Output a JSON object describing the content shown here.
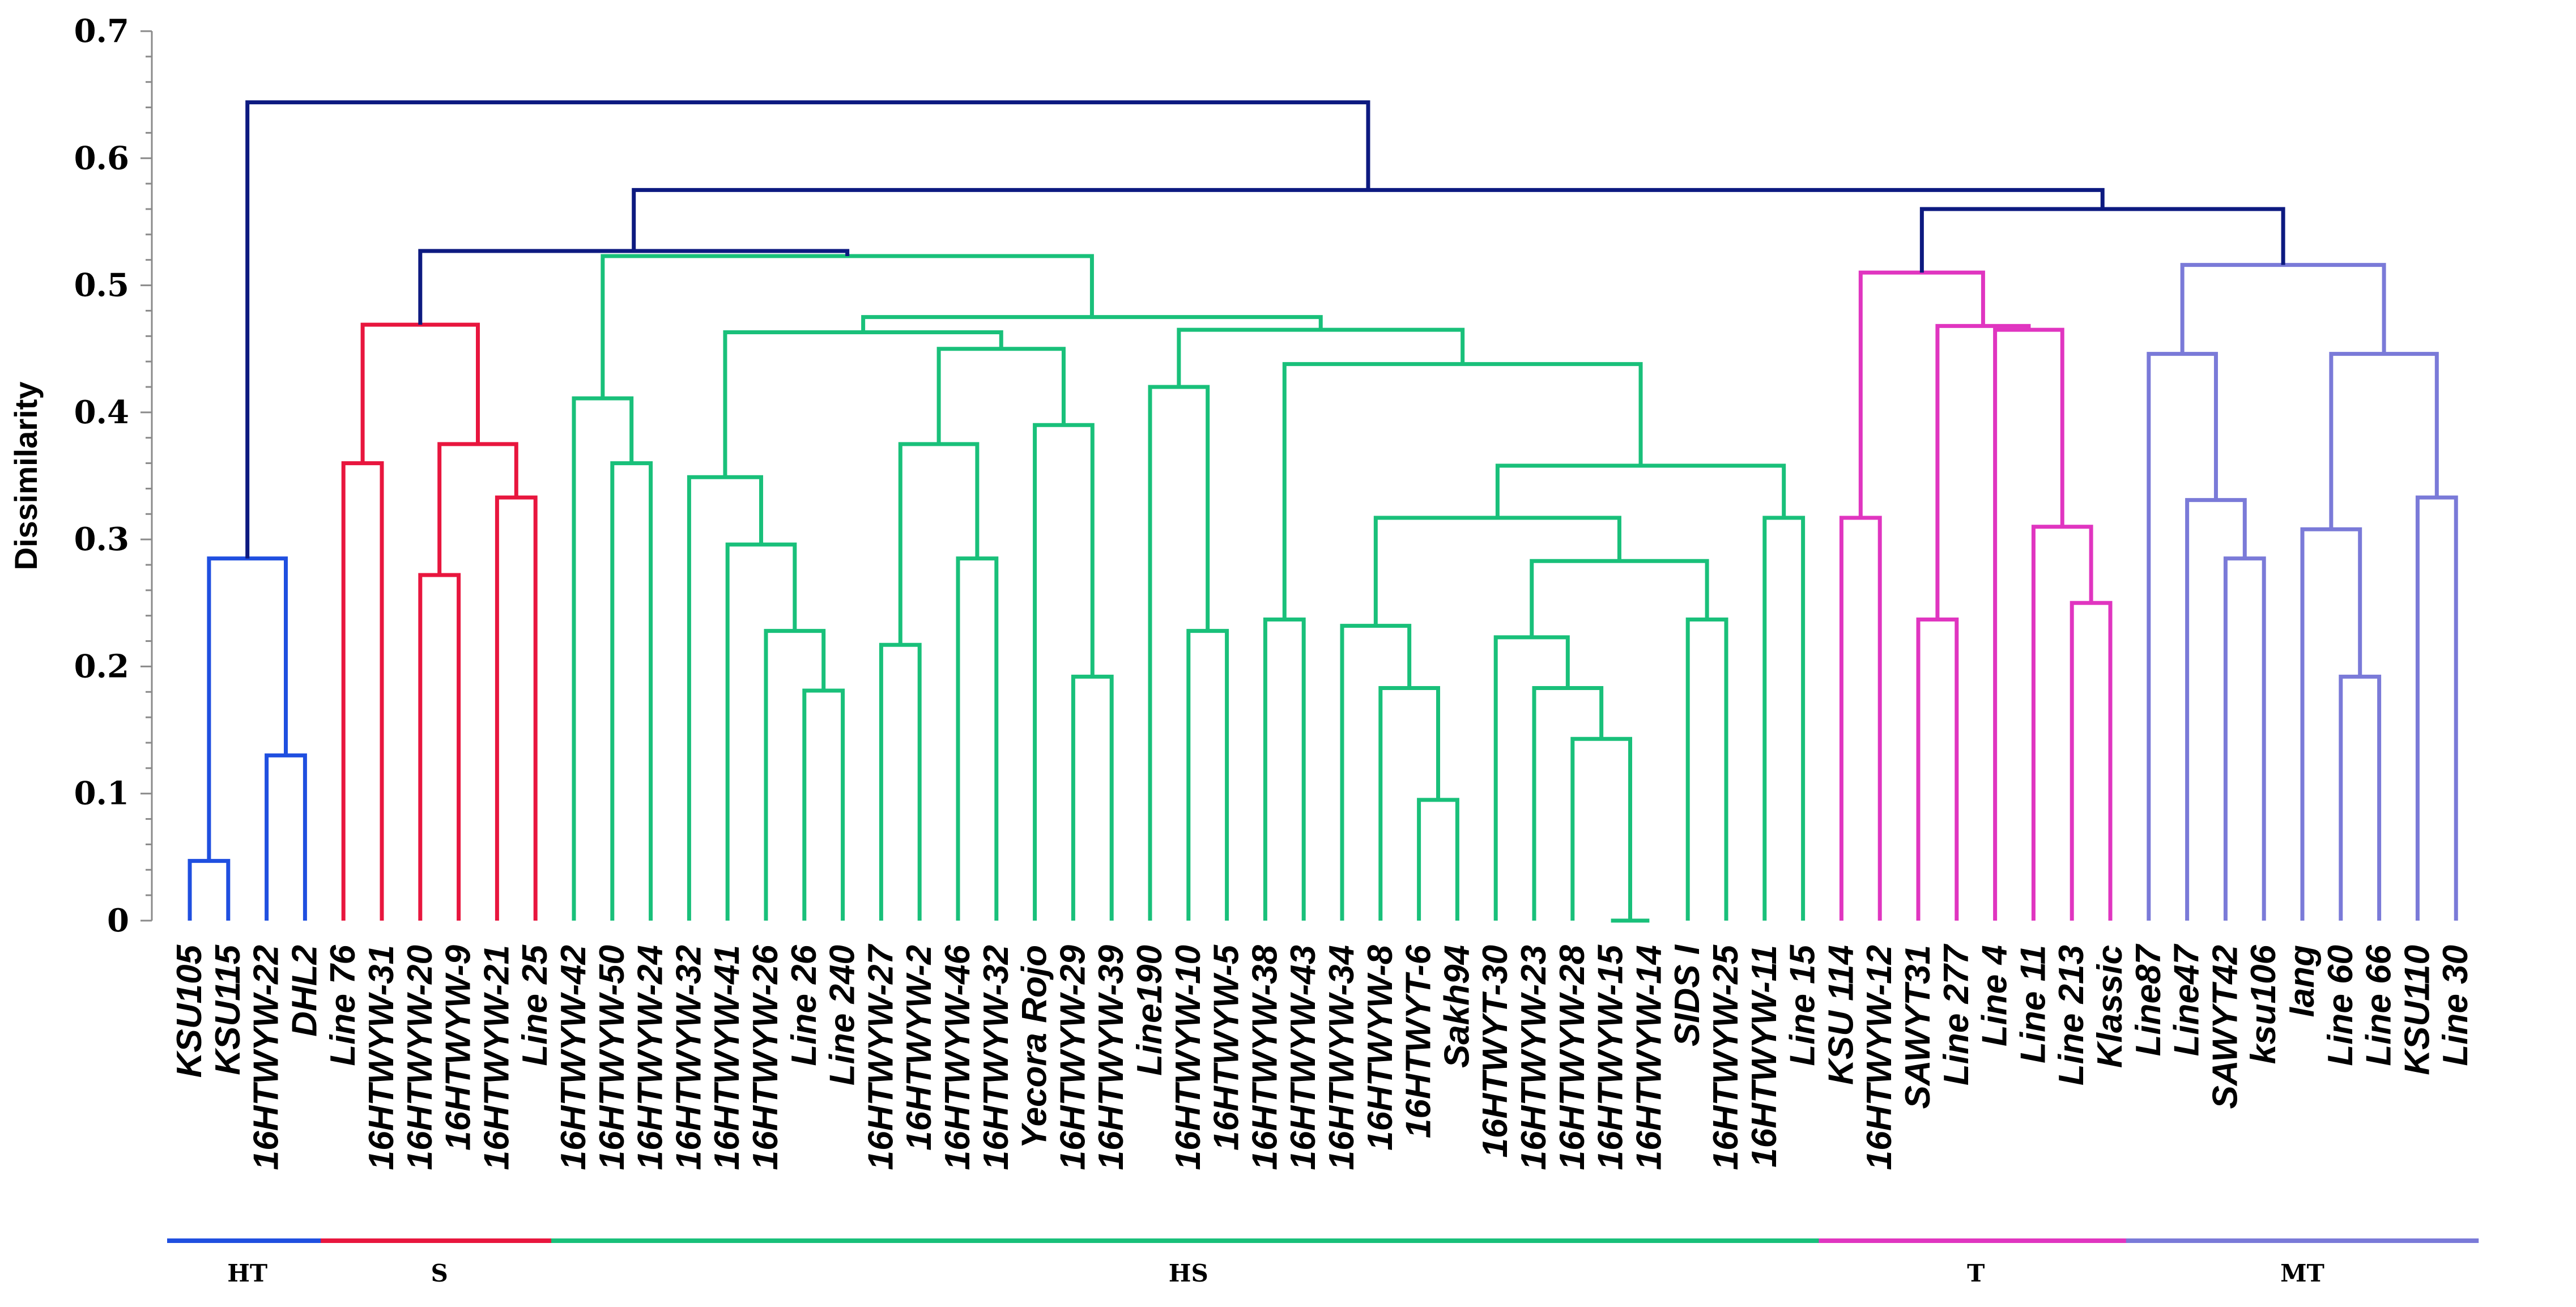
{
  "chart_data": {
    "type": "dendrogram",
    "ylabel": "Dissimilarity",
    "ylim": [
      0,
      0.7
    ],
    "yticks": [
      "0",
      "0.1",
      "0.2",
      "0.3",
      "0.4",
      "0.5",
      "0.6",
      "0.7"
    ],
    "leaves": [
      "KSU105",
      "KSU115",
      "16HTWYW-22",
      "DHL2",
      "Line 76",
      "16HTWYW-31",
      "16HTWYW-20",
      "16HTWYW-9",
      "16HTWYW-21",
      "Line 25",
      "16HTWYW-42",
      "16HTWYW-50",
      "16HTWYW-24",
      "16HTWYW-32",
      "16HTWYW-41",
      "16HTWYW-26",
      "Line 26",
      "Line 240",
      "16HTWYW-27",
      "16HTWYW-2",
      "16HTWYW-46",
      "16HTWYW-32",
      "Yecora Rojo",
      "16HTWYW-29",
      "16HTWYW-39",
      "Line190",
      "16HTWYW-10",
      "16HTWYW-5",
      "16HTWYW-38",
      "16HTWYW-43",
      "16HTWYW-34",
      "16HTWYW-8",
      "16HTWYT-6",
      "Sakh94",
      "16HTWYT-30",
      "16HTWYW-23",
      "16HTWYW-28",
      "16HTWYW-15",
      "16HTWYW-14",
      "SIDS I",
      "16HTWYW-25",
      "16HTWYW-11",
      "Line 15",
      "KSU 114",
      "16HTWYW-12",
      "SAWYT31",
      "Line 277",
      "Line 4",
      "Line 11",
      "Line 213",
      "Klassic",
      "Line87",
      "Line47",
      "SAWYT42",
      "ksu106",
      "Iang",
      "Line 60",
      "Line 66",
      "KSU110",
      "Line 30"
    ],
    "groups": [
      {
        "name": "HT",
        "color": "#1f4fe0",
        "first": 0,
        "last": 3
      },
      {
        "name": "S",
        "color": "#e8163e",
        "first": 4,
        "last": 9
      },
      {
        "name": "HS",
        "color": "#19c07a",
        "first": 10,
        "last": 42
      },
      {
        "name": "T",
        "color": "#e035c0",
        "first": 43,
        "last": 50
      },
      {
        "name": "MT",
        "color": "#7a7ad8",
        "first": 51,
        "last": 59
      }
    ],
    "root_color": "#0d1a80",
    "merges": [
      {
        "a": "L0",
        "b": "L1",
        "h": 0.047,
        "c": "HT"
      },
      {
        "a": "L2",
        "b": "L3",
        "h": 0.13,
        "c": "HT"
      },
      {
        "a": "M0",
        "b": "M1",
        "h": 0.285,
        "c": "HT"
      },
      {
        "a": "L6",
        "b": "L7",
        "h": 0.272,
        "c": "S"
      },
      {
        "a": "L8",
        "b": "L9",
        "h": 0.333,
        "c": "S"
      },
      {
        "a": "M3",
        "b": "M4",
        "h": 0.375,
        "c": "S"
      },
      {
        "a": "L4",
        "b": "L5",
        "h": 0.36,
        "c": "S"
      },
      {
        "a": "M6",
        "b": "M5",
        "h": 0.469,
        "c": "S"
      },
      {
        "a": "L11",
        "b": "L12",
        "h": 0.36,
        "c": "HS"
      },
      {
        "a": "L10",
        "b": "M8",
        "h": 0.411,
        "c": "HS"
      },
      {
        "a": "L16",
        "b": "L17",
        "h": 0.181,
        "c": "HS"
      },
      {
        "a": "L15",
        "b": "M10",
        "h": 0.228,
        "c": "HS"
      },
      {
        "a": "L14",
        "b": "M11",
        "h": 0.296,
        "c": "HS"
      },
      {
        "a": "L13",
        "b": "M12",
        "h": 0.349,
        "c": "HS"
      },
      {
        "a": "L18",
        "b": "L19",
        "h": 0.217,
        "c": "HS"
      },
      {
        "a": "L20",
        "b": "L21",
        "h": 0.285,
        "c": "HS"
      },
      {
        "a": "M14",
        "b": "M15",
        "h": 0.375,
        "c": "HS"
      },
      {
        "a": "L23",
        "b": "L24",
        "h": 0.192,
        "c": "HS"
      },
      {
        "a": "L22",
        "b": "M17",
        "h": 0.39,
        "c": "HS"
      },
      {
        "a": "M16",
        "b": "M18",
        "h": 0.45,
        "c": "HS"
      },
      {
        "a": "M13",
        "b": "M19",
        "h": 0.463,
        "c": "HS"
      },
      {
        "a": "L26",
        "b": "L27",
        "h": 0.228,
        "c": "HS"
      },
      {
        "a": "L25",
        "b": "M21",
        "h": 0.42,
        "c": "HS"
      },
      {
        "a": "L28",
        "b": "L29",
        "h": 0.237,
        "c": "HS"
      },
      {
        "a": "L32",
        "b": "L33",
        "h": 0.095,
        "c": "HS"
      },
      {
        "a": "L31",
        "b": "M24",
        "h": 0.183,
        "c": "HS"
      },
      {
        "a": "L30",
        "b": "M25",
        "h": 0.232,
        "c": "HS"
      },
      {
        "a": "L37",
        "b": "L38",
        "h": 0.0,
        "c": "HS"
      },
      {
        "a": "L36",
        "b": "M27",
        "h": 0.143,
        "c": "HS"
      },
      {
        "a": "L35",
        "b": "M28",
        "h": 0.183,
        "c": "HS"
      },
      {
        "a": "L34",
        "b": "M29",
        "h": 0.223,
        "c": "HS"
      },
      {
        "a": "L39",
        "b": "L40",
        "h": 0.237,
        "c": "HS"
      },
      {
        "a": "M30",
        "b": "M31",
        "h": 0.283,
        "c": "HS"
      },
      {
        "a": "M26",
        "b": "M32",
        "h": 0.317,
        "c": "HS"
      },
      {
        "a": "L41",
        "b": "L42",
        "h": 0.317,
        "c": "HS"
      },
      {
        "a": "M33",
        "b": "M34",
        "h": 0.358,
        "c": "HS"
      },
      {
        "a": "M23",
        "b": "M35",
        "h": 0.438,
        "c": "HS"
      },
      {
        "a": "M22",
        "b": "M36",
        "h": 0.465,
        "c": "HS"
      },
      {
        "a": "M20",
        "b": "M37",
        "h": 0.475,
        "c": "HS"
      },
      {
        "a": "M9",
        "b": "M38",
        "h": 0.523,
        "c": "HS"
      },
      {
        "a": "M7",
        "b": "M39",
        "h": 0.527,
        "c": "ROOT"
      },
      {
        "a": "L45",
        "b": "L46",
        "h": 0.237,
        "c": "T"
      },
      {
        "a": "L49",
        "b": "L50",
        "h": 0.25,
        "c": "T"
      },
      {
        "a": "L48",
        "b": "M42",
        "h": 0.31,
        "c": "T"
      },
      {
        "a": "L47",
        "b": "M43",
        "h": 0.465,
        "c": "T"
      },
      {
        "a": "M41",
        "b": "M44",
        "h": 0.468,
        "c": "T"
      },
      {
        "a": "L43",
        "b": "L44",
        "h": 0.317,
        "c": "T"
      },
      {
        "a": "M46",
        "b": "M45",
        "h": 0.51,
        "c": "T"
      },
      {
        "a": "L53",
        "b": "L54",
        "h": 0.285,
        "c": "MT"
      },
      {
        "a": "L52",
        "b": "M48",
        "h": 0.331,
        "c": "MT"
      },
      {
        "a": "L51",
        "b": "M49",
        "h": 0.446,
        "c": "MT"
      },
      {
        "a": "L56",
        "b": "L57",
        "h": 0.192,
        "c": "MT"
      },
      {
        "a": "L55",
        "b": "M51",
        "h": 0.308,
        "c": "MT"
      },
      {
        "a": "L58",
        "b": "L59",
        "h": 0.333,
        "c": "MT"
      },
      {
        "a": "M52",
        "b": "M53",
        "h": 0.446,
        "c": "MT"
      },
      {
        "a": "M50",
        "b": "M54",
        "h": 0.516,
        "c": "MT"
      },
      {
        "a": "M47",
        "b": "M55",
        "h": 0.56,
        "c": "ROOT"
      },
      {
        "a": "M40",
        "b": "M56",
        "h": 0.575,
        "c": "ROOT"
      },
      {
        "a": "M2",
        "b": "M57",
        "h": 0.644,
        "c": "ROOT"
      }
    ]
  }
}
